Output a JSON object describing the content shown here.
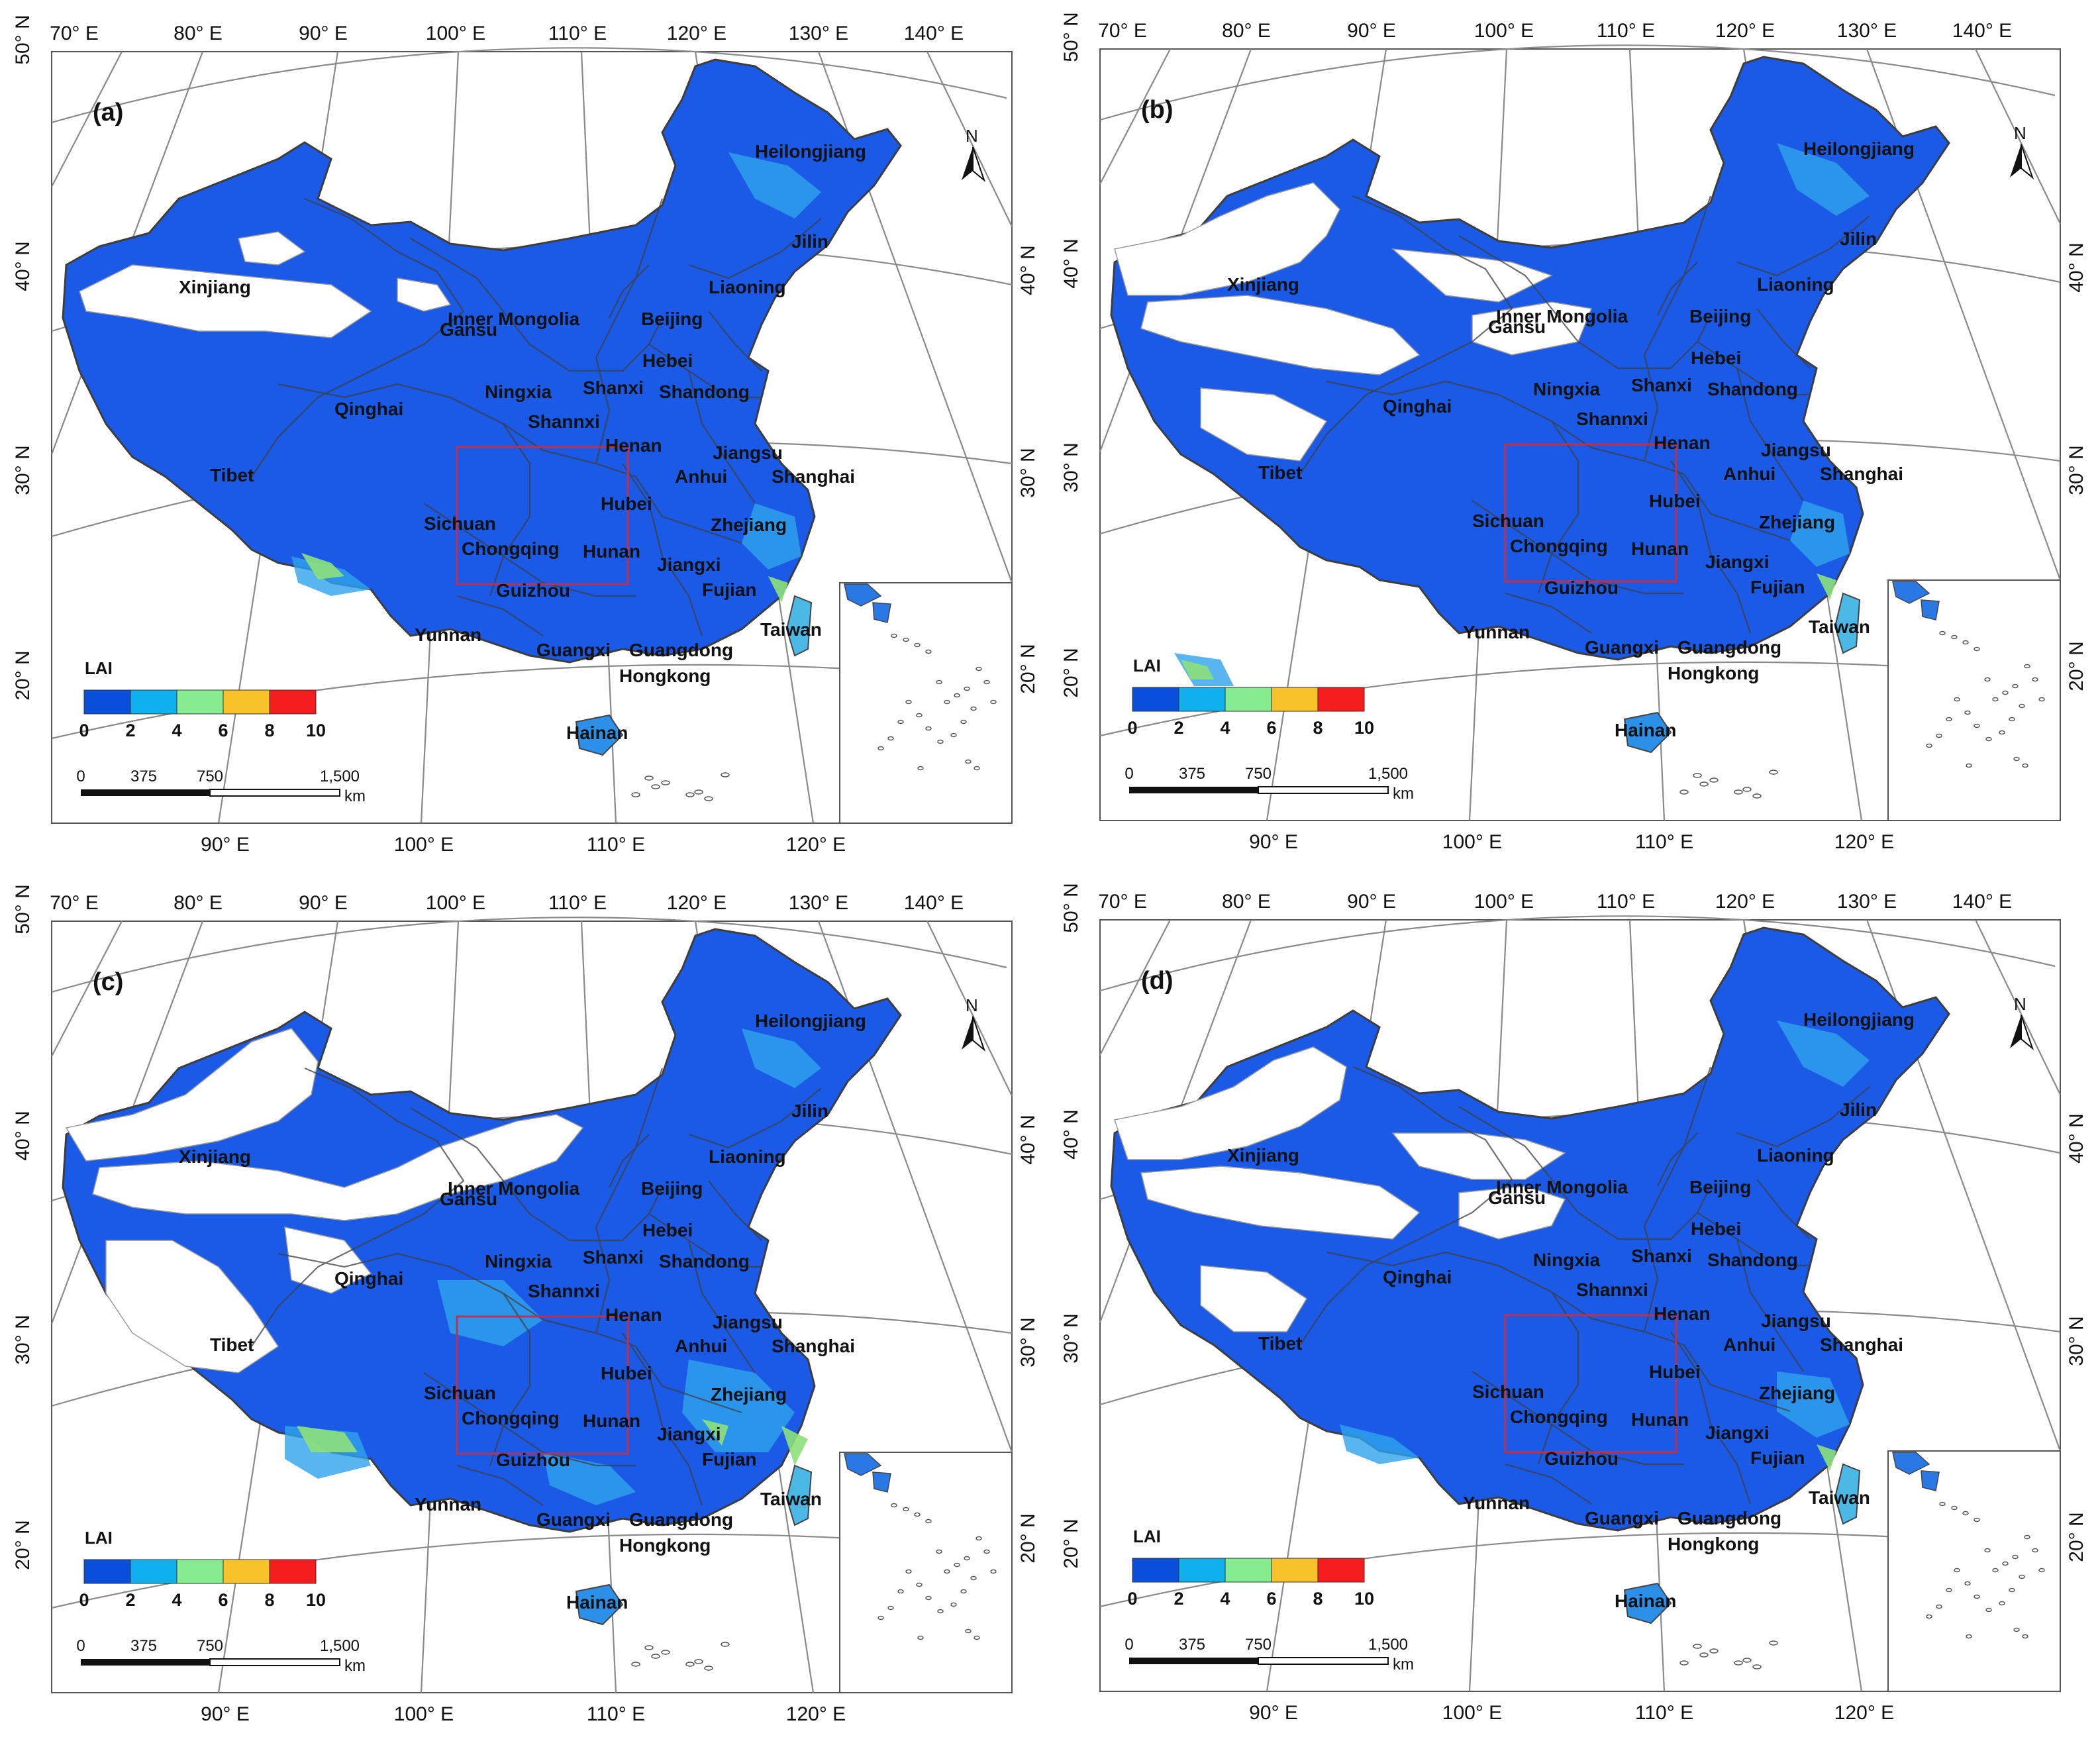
{
  "top_longitudes": [
    "70° E",
    "80° E",
    "90° E",
    "100° E",
    "110° E",
    "120° E",
    "130° E",
    "140° E"
  ],
  "bottom_longitudes": [
    "90° E",
    "100° E",
    "110° E",
    "120° E"
  ],
  "left_latitudes": [
    "50° N",
    "40° N",
    "30° N",
    "20° N"
  ],
  "right_latitudes": [
    "40° N",
    "30° N",
    "20° N"
  ],
  "north_label": "N",
  "legend": {
    "title": "LAI",
    "ticks": [
      "0",
      "2",
      "4",
      "6",
      "8",
      "10"
    ],
    "colors": [
      "#0a4fdc",
      "#10b0ee",
      "#86ec90",
      "#f7c22a",
      "#f41c1c"
    ]
  },
  "scalebar": {
    "ticks": [
      "0",
      "375",
      "750",
      "1,500"
    ],
    "unit": "km"
  },
  "colors": {
    "lai_low": "#1a5ae6",
    "lai_mid": "#2fa2ec",
    "no_data": "#ffffff",
    "borders": "#4a4a4a",
    "study_area": "#c0304a"
  },
  "provinces": [
    "Heilongjiang",
    "Jilin",
    "Liaoning",
    "Xinjiang",
    "Inner Mongolia",
    "Beijing",
    "Hebei",
    "Gansu",
    "Ningxia",
    "Shanxi",
    "Shandong",
    "Qinghai",
    "Shannxi",
    "Henan",
    "Jiangsu",
    "Tibet",
    "Anhui",
    "Shanghai",
    "Hubei",
    "Sichuan",
    "Zhejiang",
    "Chongqing",
    "Hunan",
    "Jiangxi",
    "Guizhou",
    "Fujian",
    "Taiwan",
    "Yunnan",
    "Guangxi",
    "Guangdong",
    "Hongkong",
    "Hainan"
  ],
  "panels": [
    {
      "id": "a",
      "label": "(a)",
      "lai_index": 0
    },
    {
      "id": "b",
      "label": "(b)",
      "lai_index": 1
    },
    {
      "id": "c",
      "label": "(c)",
      "lai_index": 2
    },
    {
      "id": "d",
      "label": "(d)",
      "lai_index": 3
    }
  ]
}
